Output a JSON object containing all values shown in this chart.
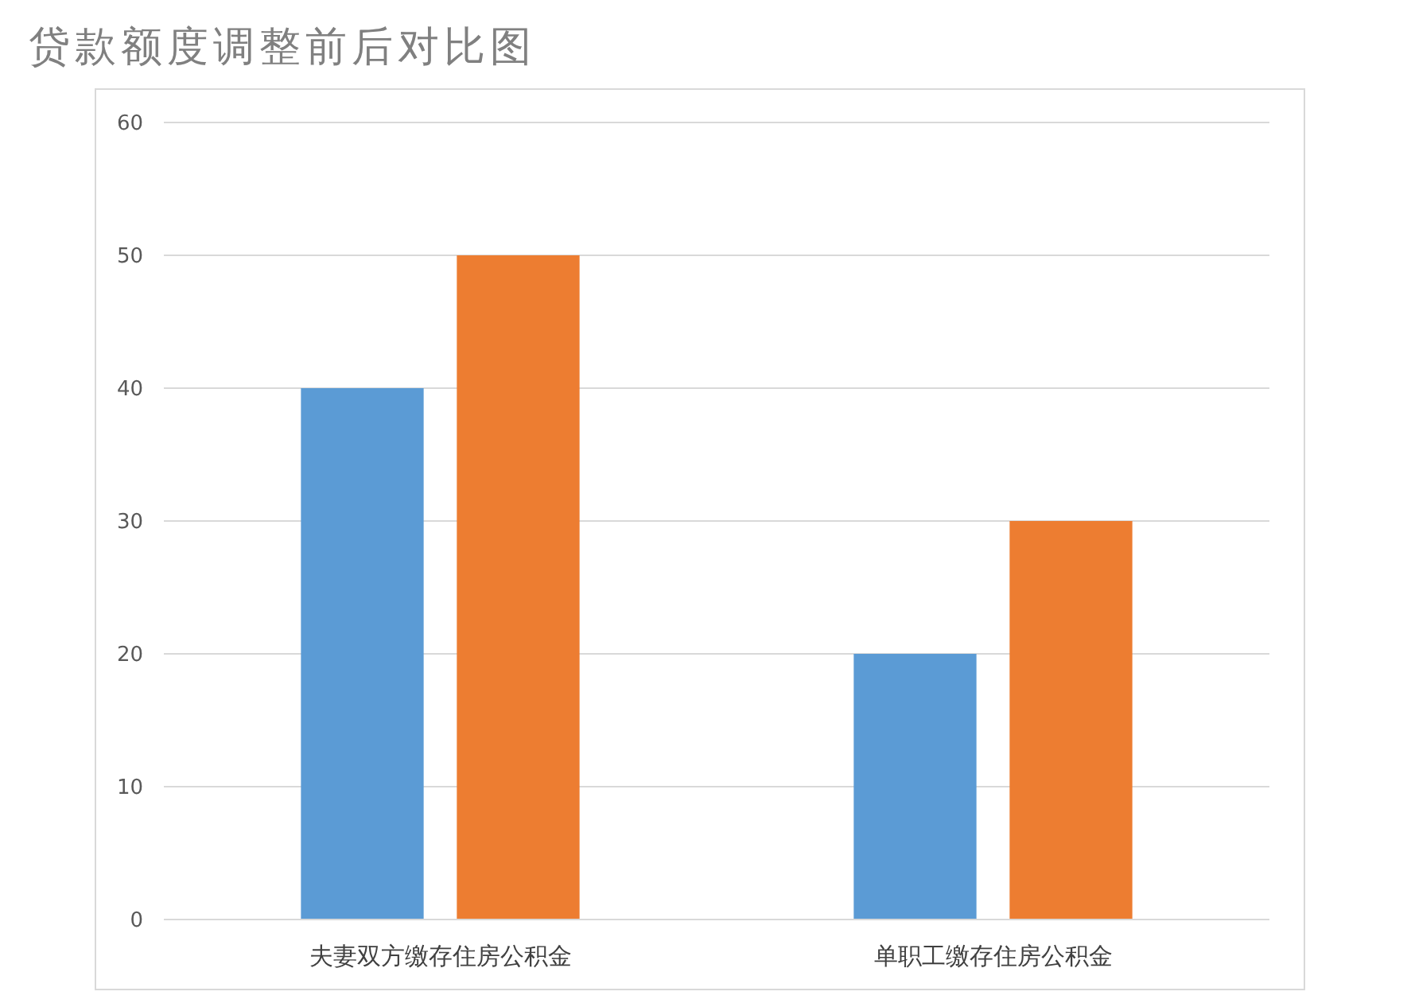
{
  "chart_data": {
    "type": "bar",
    "title": "贷款额度调整前后对比图",
    "categories": [
      "夫妻双方缴存住房公积金",
      "单职工缴存住房公积金"
    ],
    "series": [
      {
        "color": "#5b9bd5",
        "values": [
          40,
          20
        ]
      },
      {
        "color": "#ed7d31",
        "values": [
          50,
          30
        ]
      }
    ],
    "ylim": [
      0,
      60
    ],
    "yticks": [
      0,
      10,
      20,
      30,
      40,
      50,
      60
    ],
    "grid": "y"
  }
}
